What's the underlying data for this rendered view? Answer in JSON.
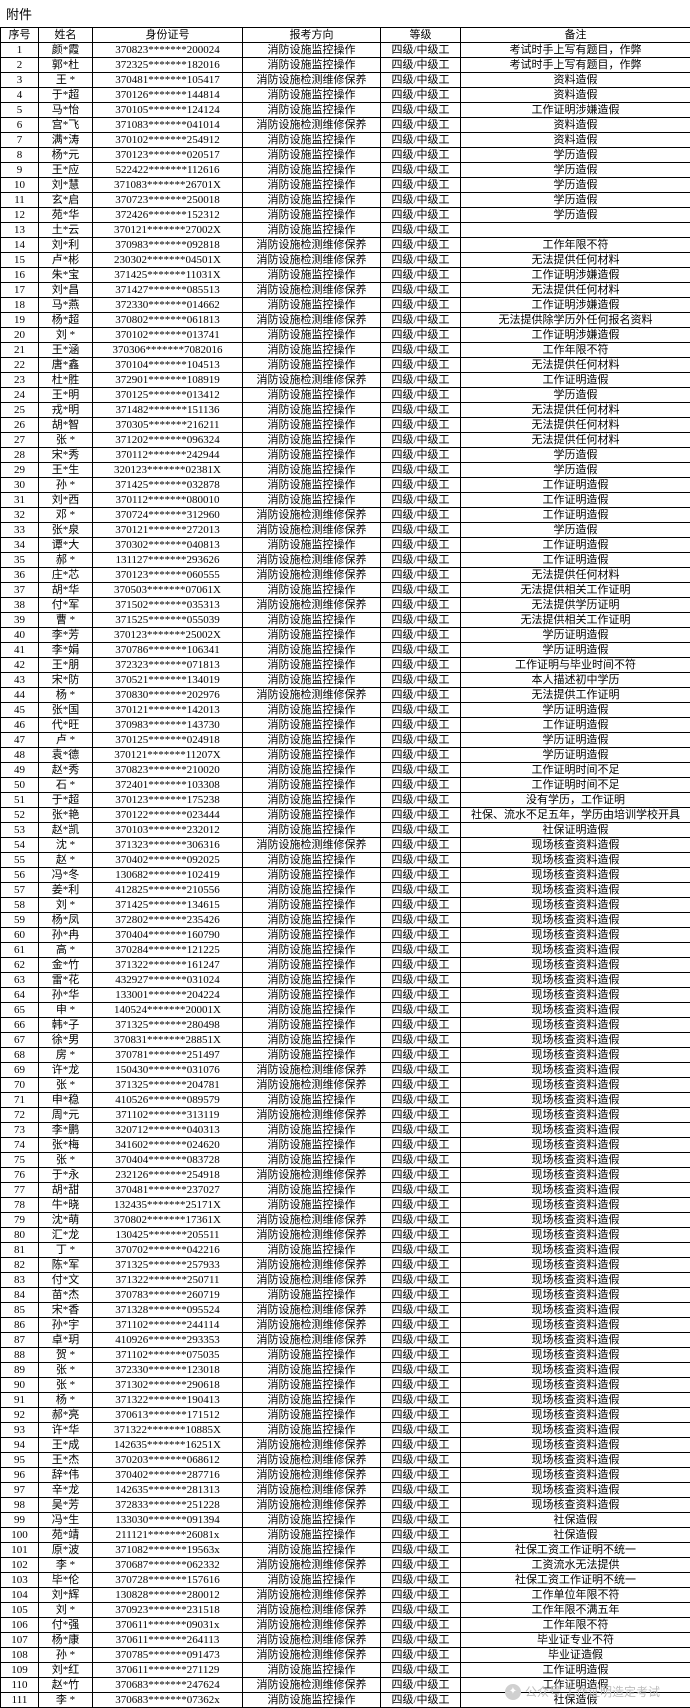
{
  "title": "附件",
  "columns": [
    "序号",
    "姓名",
    "身份证号",
    "报考方向",
    "等级",
    "备注"
  ],
  "level": "四级/中级工",
  "d_jiankong": "消防设施监控操作",
  "d_jiance": "消防设施检测维修保养",
  "watermark": "公众号 工作证明造定考试",
  "rows": [
    {
      "n": 1,
      "name": "颜*霞",
      "id": "370823*******200024",
      "dir": "jk",
      "note": "考试时手上写有题目，作弊"
    },
    {
      "n": 2,
      "name": "郭*杜",
      "id": "372325*******182016",
      "dir": "jk",
      "note": "考试时手上写有题目，作弊"
    },
    {
      "n": 3,
      "name": "王 *",
      "id": "370481*******105417",
      "dir": "jc",
      "note": "资料造假"
    },
    {
      "n": 4,
      "name": "于*超",
      "id": "370126*******144814",
      "dir": "jk",
      "note": "资料造假"
    },
    {
      "n": 5,
      "name": "马*怡",
      "id": "370105*******124124",
      "dir": "jk",
      "note": "工作证明涉嫌造假"
    },
    {
      "n": 6,
      "name": "宫*飞",
      "id": "371083*******041014",
      "dir": "jc",
      "note": "资料造假"
    },
    {
      "n": 7,
      "name": "满*涛",
      "id": "370102*******254912",
      "dir": "jk",
      "note": "资料造假"
    },
    {
      "n": 8,
      "name": "杨*元",
      "id": "370123*******020517",
      "dir": "jk",
      "note": "学历造假"
    },
    {
      "n": 9,
      "name": "王*应",
      "id": "522422*******112616",
      "dir": "jk",
      "note": "学历造假"
    },
    {
      "n": 10,
      "name": "刘*慧",
      "id": "371083*******26701X",
      "dir": "jk",
      "note": "学历造假"
    },
    {
      "n": 11,
      "name": "玄*启",
      "id": "370723*******250018",
      "dir": "jk",
      "note": "学历造假"
    },
    {
      "n": 12,
      "name": "苑*华",
      "id": "372426*******152312",
      "dir": "jk",
      "note": "学历造假"
    },
    {
      "n": 13,
      "name": "土*云",
      "id": "370121*******27002X",
      "dir": "jk",
      "note": ""
    },
    {
      "n": 14,
      "name": "刘*利",
      "id": "370983*******092818",
      "dir": "jc",
      "note": "工作年限不符"
    },
    {
      "n": 15,
      "name": "卢*彬",
      "id": "230302*******04501X",
      "dir": "jc",
      "note": "无法提供任何材料"
    },
    {
      "n": 16,
      "name": "朱*宝",
      "id": "371425*******11031X",
      "dir": "jk",
      "note": "工作证明涉嫌造假"
    },
    {
      "n": 17,
      "name": "刘*昌",
      "id": "371427*******085513",
      "dir": "jc",
      "note": "无法提供任何材料"
    },
    {
      "n": 18,
      "name": "马*燕",
      "id": "372330*******014662",
      "dir": "jk",
      "note": "工作证明涉嫌造假"
    },
    {
      "n": 19,
      "name": "杨*超",
      "id": "370802*******061813",
      "dir": "jc",
      "note": "无法提供除学历外任何报名资料"
    },
    {
      "n": 20,
      "name": "刘 *",
      "id": "370102*******013741",
      "dir": "jk",
      "note": "工作证明涉嫌造假"
    },
    {
      "n": 21,
      "name": "王*涵",
      "id": "370306*******7082016",
      "dir": "jk",
      "note": "工作年限不符"
    },
    {
      "n": 22,
      "name": "唐*鑫",
      "id": "370104*******104513",
      "dir": "jk",
      "note": "无法提供任何材料"
    },
    {
      "n": 23,
      "name": "杜*胜",
      "id": "372901*******108919",
      "dir": "jc",
      "note": "工作证明造假"
    },
    {
      "n": 24,
      "name": "王*明",
      "id": "370125*******013412",
      "dir": "jk",
      "note": "学历造假"
    },
    {
      "n": 25,
      "name": "戎*明",
      "id": "371482*******151136",
      "dir": "jk",
      "note": "无法提供任何材料"
    },
    {
      "n": 26,
      "name": "胡*智",
      "id": "370305*******216211",
      "dir": "jk",
      "note": "无法提供任何材料"
    },
    {
      "n": 27,
      "name": "张 *",
      "id": "371202*******096324",
      "dir": "jk",
      "note": "无法提供任何材料"
    },
    {
      "n": 28,
      "name": "宋*秀",
      "id": "370112*******242944",
      "dir": "jk",
      "note": "学历造假"
    },
    {
      "n": 29,
      "name": "王*生",
      "id": "320123*******02381X",
      "dir": "jk",
      "note": "学历造假"
    },
    {
      "n": 30,
      "name": "孙 *",
      "id": "371425*******032878",
      "dir": "jk",
      "note": "工作证明造假"
    },
    {
      "n": 31,
      "name": "刘*西",
      "id": "370112*******080010",
      "dir": "jk",
      "note": "工作证明造假"
    },
    {
      "n": 32,
      "name": "邓 *",
      "id": "370724*******312960",
      "dir": "jc",
      "note": "工作证明造假"
    },
    {
      "n": 33,
      "name": "张*泉",
      "id": "370121*******272013",
      "dir": "jc",
      "note": "学历造假"
    },
    {
      "n": 34,
      "name": "谭*大",
      "id": "370302*******040813",
      "dir": "jk",
      "note": "工作证明造假"
    },
    {
      "n": 35,
      "name": "郝 *",
      "id": "131127*******293626",
      "dir": "jc",
      "note": "工作证明造假"
    },
    {
      "n": 36,
      "name": "庄*芯",
      "id": "370123*******060555",
      "dir": "jc",
      "note": "无法提供任何材料"
    },
    {
      "n": 37,
      "name": "胡*华",
      "id": "370503*******07061X",
      "dir": "jk",
      "note": "无法提供相关工作证明"
    },
    {
      "n": 38,
      "name": "付*军",
      "id": "371502*******035313",
      "dir": "jc",
      "note": "无法提供学历证明"
    },
    {
      "n": 39,
      "name": "曹 *",
      "id": "371525*******055039",
      "dir": "jk",
      "note": "无法提供相关工作证明"
    },
    {
      "n": 40,
      "name": "李*芳",
      "id": "370123*******25002X",
      "dir": "jk",
      "note": "学历证明造假"
    },
    {
      "n": 41,
      "name": "李*娟",
      "id": "370786*******106341",
      "dir": "jk",
      "note": "学历证明造假"
    },
    {
      "n": 42,
      "name": "王*朋",
      "id": "372323*******071813",
      "dir": "jk",
      "note": "工作证明与毕业时间不符"
    },
    {
      "n": 43,
      "name": "宋*防",
      "id": "370521*******134019",
      "dir": "jk",
      "note": "本人描述初中学历"
    },
    {
      "n": 44,
      "name": "杨 *",
      "id": "370830*******202976",
      "dir": "jc",
      "note": "无法提供工作证明"
    },
    {
      "n": 45,
      "name": "张*国",
      "id": "370121*******142013",
      "dir": "jk",
      "note": "学历证明造假"
    },
    {
      "n": 46,
      "name": "代*旺",
      "id": "370983*******143730",
      "dir": "jk",
      "note": "工作证明造假"
    },
    {
      "n": 47,
      "name": "卢 *",
      "id": "370125*******024918",
      "dir": "jk",
      "note": "学历证明造假"
    },
    {
      "n": 48,
      "name": "袁*德",
      "id": "370121*******11207X",
      "dir": "jk",
      "note": "学历证明造假"
    },
    {
      "n": 49,
      "name": "赵*秀",
      "id": "370823*******210020",
      "dir": "jk",
      "note": "工作证明时间不足"
    },
    {
      "n": 50,
      "name": "石 *",
      "id": "372401*******103308",
      "dir": "jk",
      "note": "工作证明时间不足"
    },
    {
      "n": 51,
      "name": "于*超",
      "id": "370123*******175238",
      "dir": "jk",
      "note": "没有学历，工作证明"
    },
    {
      "n": 52,
      "name": "张*艳",
      "id": "370122*******023444",
      "dir": "jk",
      "note": "社保、流水不足五年，学历由培训学校开具"
    },
    {
      "n": 53,
      "name": "赵*凯",
      "id": "370103*******232012",
      "dir": "jk",
      "note": "社保证明造假"
    },
    {
      "n": 54,
      "name": "沈 *",
      "id": "371323*******306316",
      "dir": "jc",
      "note": "现场核查资料造假"
    },
    {
      "n": 55,
      "name": "赵 *",
      "id": "370402*******092025",
      "dir": "jk",
      "note": "现场核查资料造假"
    },
    {
      "n": 56,
      "name": "冯*冬",
      "id": "130682*******102419",
      "dir": "jk",
      "note": "现场核查资料造假"
    },
    {
      "n": 57,
      "name": "姜*利",
      "id": "412825*******210556",
      "dir": "jk",
      "note": "现场核查资料造假"
    },
    {
      "n": 58,
      "name": "刘 *",
      "id": "371425*******134615",
      "dir": "jk",
      "note": "现场核查资料造假"
    },
    {
      "n": 59,
      "name": "杨*凤",
      "id": "372802*******235426",
      "dir": "jk",
      "note": "现场核查资料造假"
    },
    {
      "n": 60,
      "name": "孙*冉",
      "id": "370404*******160790",
      "dir": "jk",
      "note": "现场核查资料造假"
    },
    {
      "n": 61,
      "name": "高 *",
      "id": "370284*******121225",
      "dir": "jk",
      "note": "现场核查资料造假"
    },
    {
      "n": 62,
      "name": "金*竹",
      "id": "371322*******161247",
      "dir": "jk",
      "note": "现场核查资料造假"
    },
    {
      "n": 63,
      "name": "雷*花",
      "id": "432927*******031024",
      "dir": "jk",
      "note": "现场核查资料造假"
    },
    {
      "n": 64,
      "name": "孙*华",
      "id": "133001*******204224",
      "dir": "jk",
      "note": "现场核查资料造假"
    },
    {
      "n": 65,
      "name": "申 *",
      "id": "140524*******20001X",
      "dir": "jk",
      "note": "现场核查资料造假"
    },
    {
      "n": 66,
      "name": "韩*子",
      "id": "371325*******280498",
      "dir": "jk",
      "note": "现场核查资料造假"
    },
    {
      "n": 67,
      "name": "徐*男",
      "id": "370831*******28851X",
      "dir": "jk",
      "note": "现场核查资料造假"
    },
    {
      "n": 68,
      "name": "房 *",
      "id": "370781*******251497",
      "dir": "jk",
      "note": "现场核查资料造假"
    },
    {
      "n": 69,
      "name": "许*龙",
      "id": "150430*******031076",
      "dir": "jc",
      "note": "现场核查资料造假"
    },
    {
      "n": 70,
      "name": "张 *",
      "id": "371325*******204781",
      "dir": "jc",
      "note": "现场核查资料造假"
    },
    {
      "n": 71,
      "name": "申*稳",
      "id": "410526*******089579",
      "dir": "jk",
      "note": "现场核查资料造假"
    },
    {
      "n": 72,
      "name": "周*元",
      "id": "371102*******313119",
      "dir": "jc",
      "note": "现场核查资料造假"
    },
    {
      "n": 73,
      "name": "李*鹏",
      "id": "320712*******040313",
      "dir": "jk",
      "note": "现场核查资料造假"
    },
    {
      "n": 74,
      "name": "张*梅",
      "id": "341602*******024620",
      "dir": "jk",
      "note": "现场核查资料造假"
    },
    {
      "n": 75,
      "name": "张 *",
      "id": "370404*******083728",
      "dir": "jk",
      "note": "现场核查资料造假"
    },
    {
      "n": 76,
      "name": "于*永",
      "id": "232126*******254918",
      "dir": "jc",
      "note": "现场核查资料造假"
    },
    {
      "n": 77,
      "name": "胡*甜",
      "id": "370481*******237027",
      "dir": "jk",
      "note": "现场核查资料造假"
    },
    {
      "n": 78,
      "name": "牛*晓",
      "id": "132435*******25171X",
      "dir": "jk",
      "note": "现场核查资料造假"
    },
    {
      "n": 79,
      "name": "沈*萌",
      "id": "370802*******17361X",
      "dir": "jc",
      "note": "现场核查资料造假"
    },
    {
      "n": 80,
      "name": "汇*龙",
      "id": "130425*******205511",
      "dir": "jc",
      "note": "现场核查资料造假"
    },
    {
      "n": 81,
      "name": "丁 *",
      "id": "370702*******042216",
      "dir": "jk",
      "note": "现场核查资料造假"
    },
    {
      "n": 82,
      "name": "陈*军",
      "id": "371325*******257933",
      "dir": "jc",
      "note": "现场核查资料造假"
    },
    {
      "n": 83,
      "name": "付*文",
      "id": "371322*******250711",
      "dir": "jc",
      "note": "现场核查资料造假"
    },
    {
      "n": 84,
      "name": "苗*杰",
      "id": "370783*******260719",
      "dir": "jk",
      "note": "现场核查资料造假"
    },
    {
      "n": 85,
      "name": "宋*香",
      "id": "371328*******095524",
      "dir": "jc",
      "note": "现场核查资料造假"
    },
    {
      "n": 86,
      "name": "孙*宇",
      "id": "371102*******244114",
      "dir": "jc",
      "note": "现场核查资料造假"
    },
    {
      "n": 87,
      "name": "卓*玥",
      "id": "410926*******293353",
      "dir": "jc",
      "note": "现场核查资料造假"
    },
    {
      "n": 88,
      "name": "贺 *",
      "id": "371102*******075035",
      "dir": "jk",
      "note": "现场核查资料造假"
    },
    {
      "n": 89,
      "name": "张 *",
      "id": "372330*******123018",
      "dir": "jk",
      "note": "现场核查资料造假"
    },
    {
      "n": 90,
      "name": "张 *",
      "id": "371302*******290618",
      "dir": "jk",
      "note": "现场核查资料造假"
    },
    {
      "n": 91,
      "name": "杨 *",
      "id": "371322*******190413",
      "dir": "jk",
      "note": "现场核查资料造假"
    },
    {
      "n": 92,
      "name": "郝*亮",
      "id": "370613*******171512",
      "dir": "jk",
      "note": "现场核查资料造假"
    },
    {
      "n": 93,
      "name": "许*华",
      "id": "371322*******10885X",
      "dir": "jk",
      "note": "现场核查资料造假"
    },
    {
      "n": 94,
      "name": "王*成",
      "id": "142635*******16251X",
      "dir": "jc",
      "note": "现场核查资料造假"
    },
    {
      "n": 95,
      "name": "王*杰",
      "id": "370203*******068612",
      "dir": "jc",
      "note": "现场核查资料造假"
    },
    {
      "n": 96,
      "name": "辞*伟",
      "id": "370402*******287716",
      "dir": "jc",
      "note": "现场核查资料造假"
    },
    {
      "n": 97,
      "name": "辛*龙",
      "id": "142635*******281313",
      "dir": "jc",
      "note": "现场核查资料造假"
    },
    {
      "n": 98,
      "name": "吴*芳",
      "id": "372833*******251228",
      "dir": "jc",
      "note": "现场核查资料造假"
    },
    {
      "n": 99,
      "name": "冯*生",
      "id": "133030*******091394",
      "dir": "jk",
      "note": "社保造假"
    },
    {
      "n": 100,
      "name": "苑*靖",
      "id": "211121*******26081x",
      "dir": "jk",
      "note": "社保造假"
    },
    {
      "n": 101,
      "name": "原*波",
      "id": "371082*******19563x",
      "dir": "jk",
      "note": "社保工资工作证明不统一"
    },
    {
      "n": 102,
      "name": "李 *",
      "id": "370687*******062332",
      "dir": "jc",
      "note": "工资流水无法提供"
    },
    {
      "n": 103,
      "name": "毕*伦",
      "id": "370728*******157616",
      "dir": "jk",
      "note": "社保工资工作证明不统一"
    },
    {
      "n": 104,
      "name": "刘*辉",
      "id": "130828*******280012",
      "dir": "jc",
      "note": "工作单位年限不符"
    },
    {
      "n": 105,
      "name": "刘 *",
      "id": "370923*******231518",
      "dir": "jc",
      "note": "工作年限不满五年"
    },
    {
      "n": 106,
      "name": "付*强",
      "id": "370611*******09031x",
      "dir": "jc",
      "note": "工作年限不符"
    },
    {
      "n": 107,
      "name": "杨*康",
      "id": "370611*******264113",
      "dir": "jc",
      "note": "毕业证专业不符"
    },
    {
      "n": 108,
      "name": "孙 *",
      "id": "370785*******091473",
      "dir": "jc",
      "note": "毕业证造假"
    },
    {
      "n": 109,
      "name": "刘*红",
      "id": "370611*******271129",
      "dir": "jk",
      "note": "工作证明造假"
    },
    {
      "n": 110,
      "name": "赵*竹",
      "id": "370683*******247624",
      "dir": "jc",
      "note": "工作证明造假"
    },
    {
      "n": 111,
      "name": "李 *",
      "id": "370683*******07362x",
      "dir": "jk",
      "note": "社保造假"
    }
  ]
}
